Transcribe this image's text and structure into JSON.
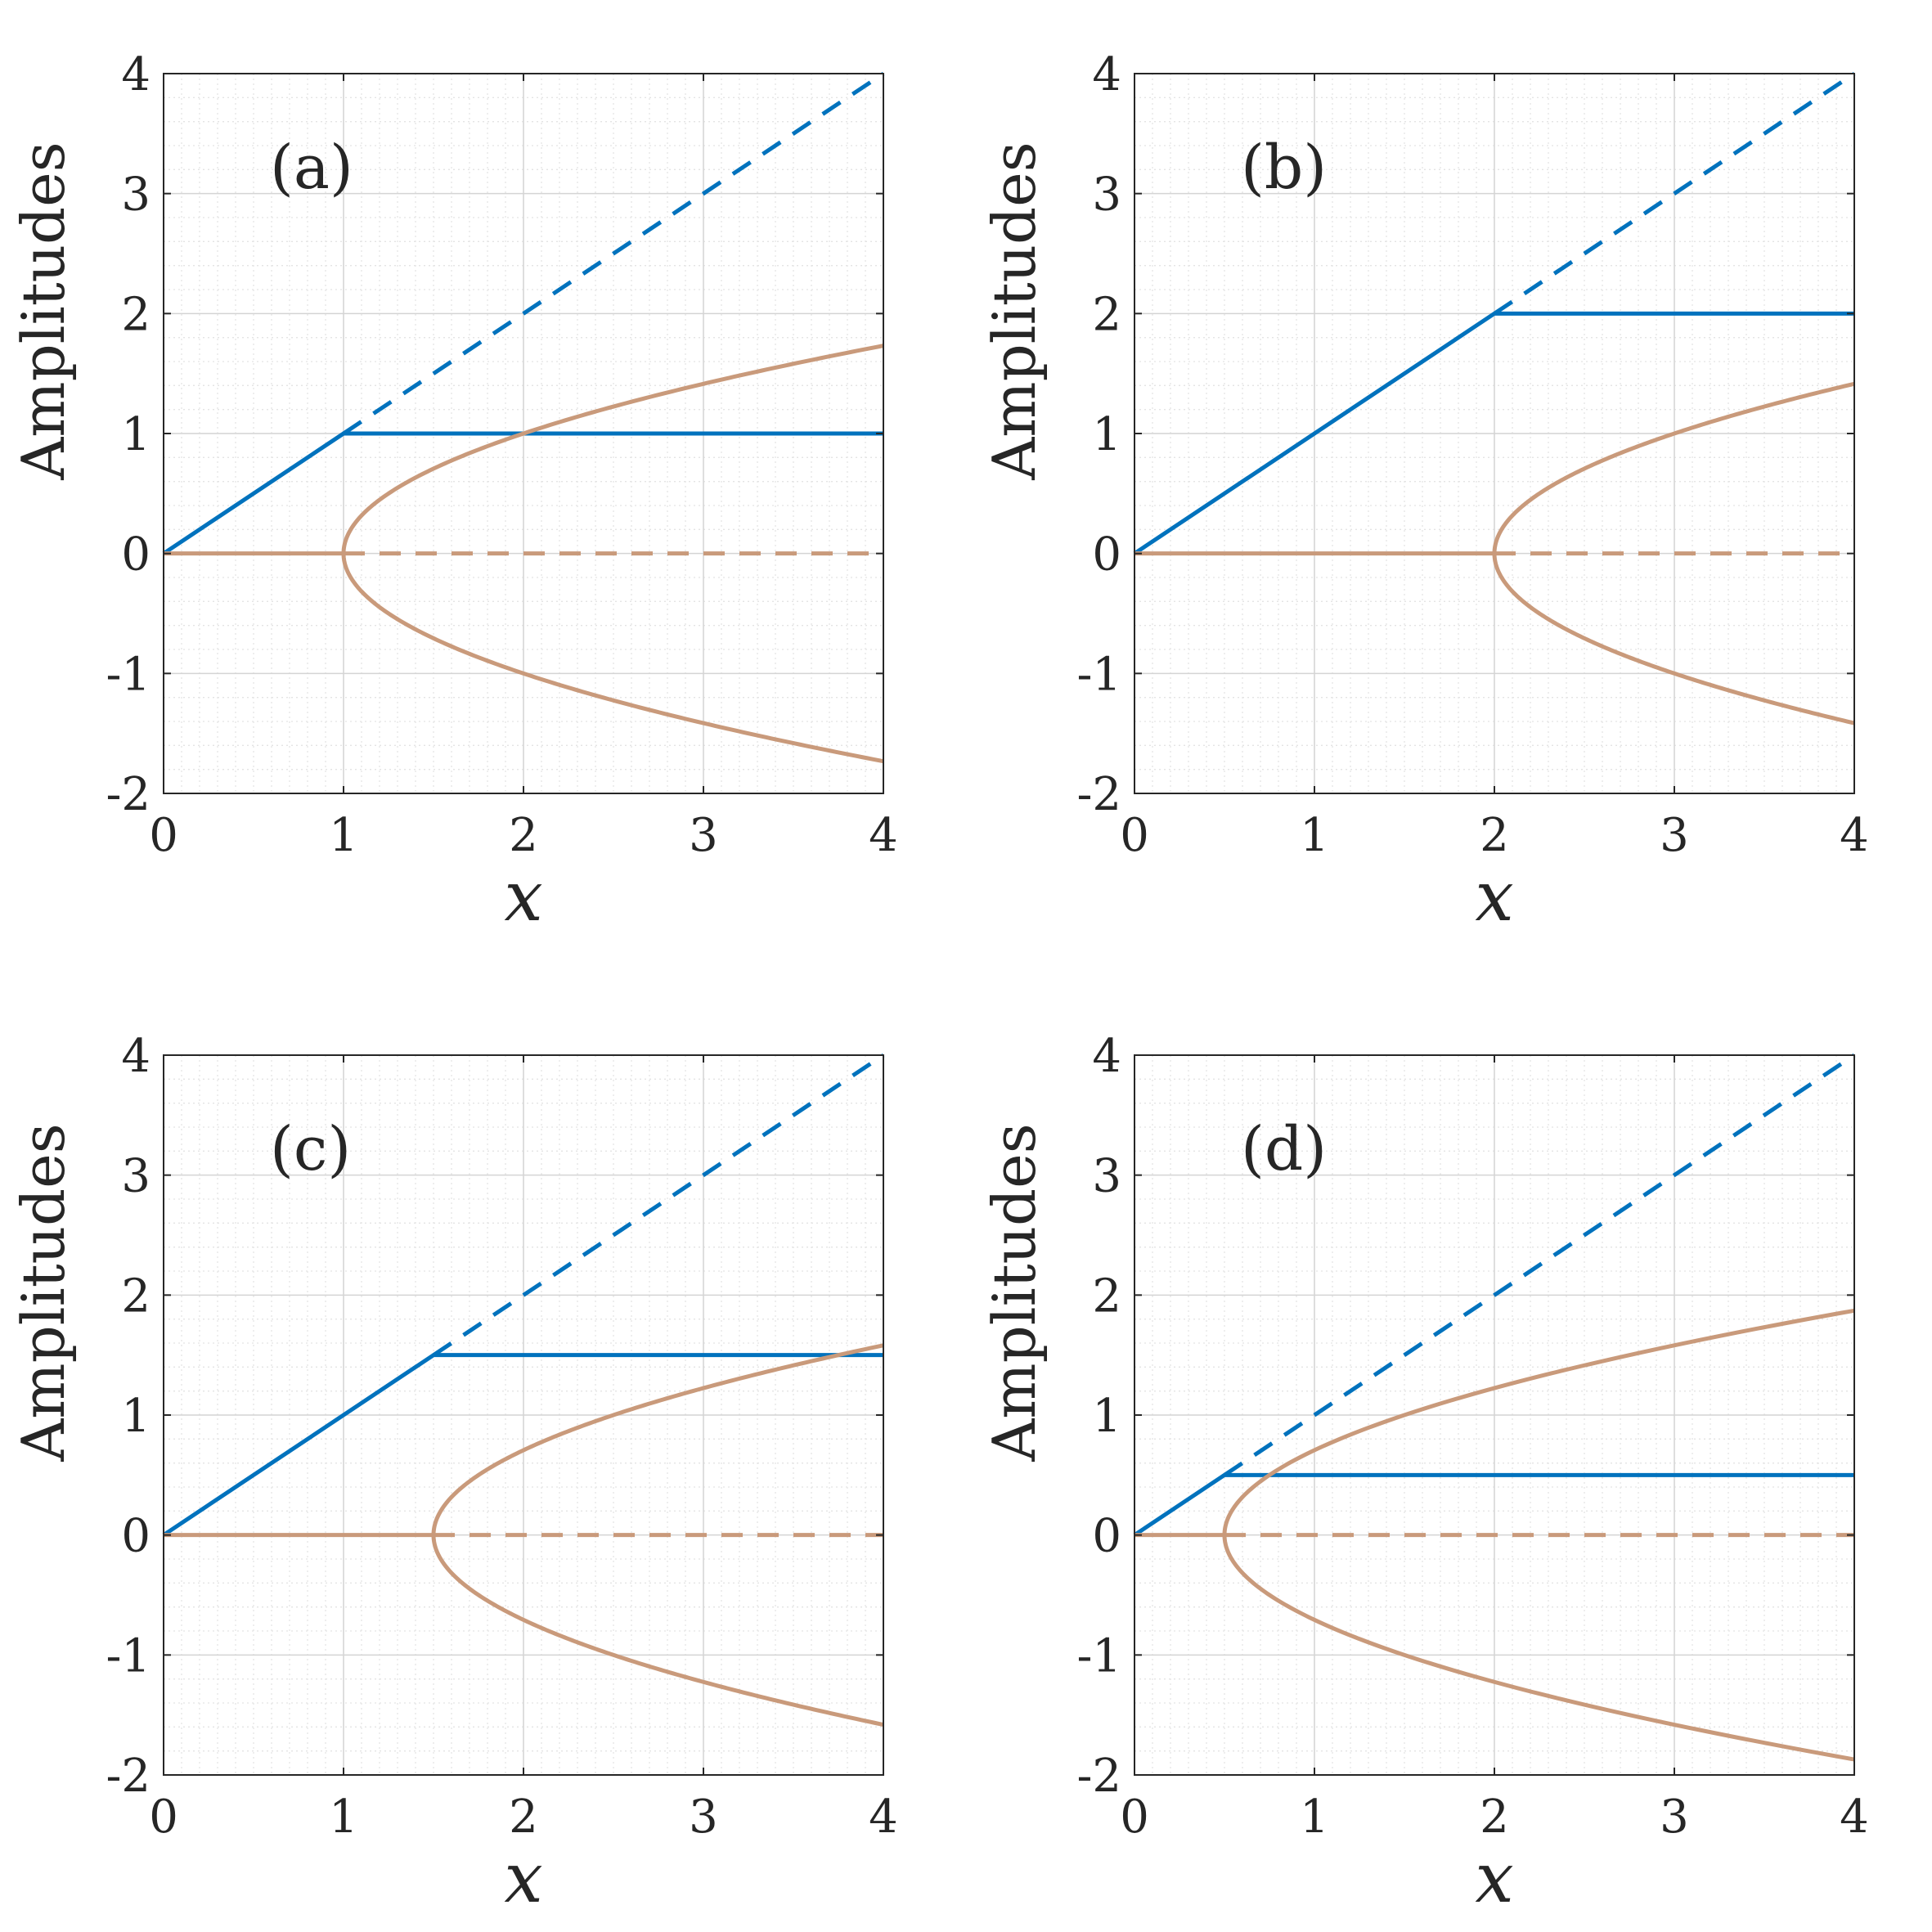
{
  "colors": {
    "blue": "#0072BD",
    "orange": "#C99A7B",
    "grid_major": "#D4D4D4",
    "grid_minor": "#E4E4E4",
    "axis": "#262626"
  },
  "chart_data": [
    {
      "type": "line",
      "panel_label": "(a)",
      "xlabel": "x",
      "ylabel": "Amplitudes",
      "xlim": [
        0,
        4
      ],
      "ylim": [
        -2,
        4
      ],
      "xticks": [
        "0",
        "1",
        "2",
        "3",
        "4"
      ],
      "yticks": [
        "-2",
        "-1",
        "0",
        "1",
        "2",
        "3",
        "4"
      ],
      "grid": "major and minor",
      "threshold": 1,
      "series": [
        {
          "style": "blue solid",
          "x": [
            0,
            1,
            4
          ],
          "y": [
            0,
            1,
            1
          ]
        },
        {
          "style": "blue dashed",
          "x": [
            1,
            4
          ],
          "y": [
            1,
            4
          ]
        },
        {
          "style": "orange solid",
          "x": [
            0,
            1
          ],
          "y": [
            0,
            0
          ]
        },
        {
          "style": "orange dashed",
          "x": [
            1,
            4
          ],
          "y": [
            0,
            0
          ]
        },
        {
          "style": "orange solid",
          "curve": "y = ±sqrt(x - 1)",
          "x": [
            1,
            2,
            3,
            4
          ],
          "y_upper": [
            0,
            1,
            1.41,
            1.73
          ],
          "y_lower": [
            0,
            -1,
            -1.41,
            -1.73
          ]
        }
      ]
    },
    {
      "type": "line",
      "panel_label": "(b)",
      "xlabel": "x",
      "ylabel": "Amplitudes",
      "xlim": [
        0,
        4
      ],
      "ylim": [
        -2,
        4
      ],
      "xticks": [
        "0",
        "1",
        "2",
        "3",
        "4"
      ],
      "yticks": [
        "-2",
        "-1",
        "0",
        "1",
        "2",
        "3",
        "4"
      ],
      "grid": "major and minor",
      "threshold": 2,
      "series": [
        {
          "style": "blue solid",
          "x": [
            0,
            2,
            4
          ],
          "y": [
            0,
            2,
            2
          ]
        },
        {
          "style": "blue dashed",
          "x": [
            2,
            4
          ],
          "y": [
            2,
            4
          ]
        },
        {
          "style": "orange solid",
          "x": [
            0,
            2
          ],
          "y": [
            0,
            0
          ]
        },
        {
          "style": "orange dashed",
          "x": [
            2,
            4
          ],
          "y": [
            0,
            0
          ]
        },
        {
          "style": "orange solid",
          "curve": "y = ±sqrt(x - 2)",
          "x": [
            2,
            3,
            4
          ],
          "y_upper": [
            0,
            1,
            1.41
          ],
          "y_lower": [
            0,
            -1,
            -1.41
          ]
        }
      ]
    },
    {
      "type": "line",
      "panel_label": "(c)",
      "xlabel": "x",
      "ylabel": "Amplitudes",
      "xlim": [
        0,
        4
      ],
      "ylim": [
        -2,
        4
      ],
      "xticks": [
        "0",
        "1",
        "2",
        "3",
        "4"
      ],
      "yticks": [
        "-2",
        "-1",
        "0",
        "1",
        "2",
        "3",
        "4"
      ],
      "grid": "major and minor",
      "threshold": 1.5,
      "series": [
        {
          "style": "blue solid",
          "x": [
            0,
            1.5,
            4
          ],
          "y": [
            0,
            1.5,
            1.5
          ]
        },
        {
          "style": "blue dashed",
          "x": [
            1.5,
            4
          ],
          "y": [
            1.5,
            4
          ]
        },
        {
          "style": "orange solid",
          "x": [
            0,
            1.5
          ],
          "y": [
            0,
            0
          ]
        },
        {
          "style": "orange dashed",
          "x": [
            1.5,
            4
          ],
          "y": [
            0,
            0
          ]
        },
        {
          "style": "orange solid",
          "curve": "y = ±sqrt(x - 1.5)",
          "x": [
            1.5,
            2.5,
            4
          ],
          "y_upper": [
            0,
            1,
            1.58
          ],
          "y_lower": [
            0,
            -1,
            -1.58
          ]
        }
      ]
    },
    {
      "type": "line",
      "panel_label": "(d)",
      "xlabel": "x",
      "ylabel": "Amplitudes",
      "xlim": [
        0,
        4
      ],
      "ylim": [
        -2,
        4
      ],
      "xticks": [
        "0",
        "1",
        "2",
        "3",
        "4"
      ],
      "yticks": [
        "-2",
        "-1",
        "0",
        "1",
        "2",
        "3",
        "4"
      ],
      "grid": "major and minor",
      "threshold": 0.5,
      "series": [
        {
          "style": "blue solid",
          "x": [
            0,
            0.5,
            4
          ],
          "y": [
            0,
            0.5,
            0.5
          ]
        },
        {
          "style": "blue dashed",
          "x": [
            0.5,
            4
          ],
          "y": [
            0.5,
            4
          ]
        },
        {
          "style": "orange solid",
          "x": [
            0,
            0.5
          ],
          "y": [
            0,
            0
          ]
        },
        {
          "style": "orange dashed",
          "x": [
            0.5,
            4
          ],
          "y": [
            0,
            0
          ]
        },
        {
          "style": "orange solid",
          "curve": "y = ±sqrt(x - 0.5)",
          "x": [
            0.5,
            1.5,
            4
          ],
          "y_upper": [
            0,
            1,
            1.87
          ],
          "y_lower": [
            0,
            -1,
            -1.87
          ]
        }
      ]
    }
  ]
}
